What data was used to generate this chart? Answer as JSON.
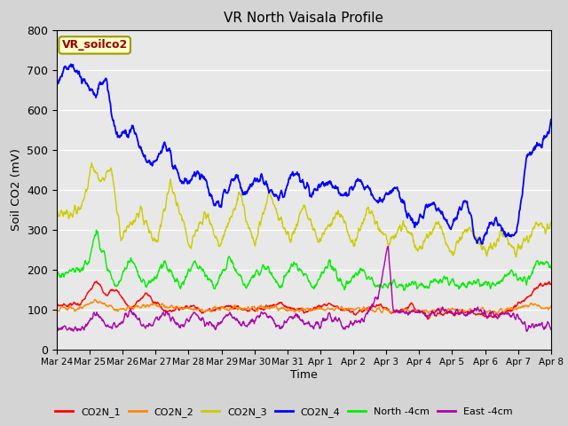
{
  "title": "VR North Vaisala Profile",
  "ylabel": "Soil CO2 (mV)",
  "xlabel": "Time",
  "annotation": "VR_soilco2",
  "ylim": [
    0,
    800
  ],
  "fig_bg_color": "#d4d4d4",
  "plot_bg_color": "#e8e8e8",
  "series_colors": {
    "CO2N_1": "#ff0000",
    "CO2N_2": "#ff8800",
    "CO2N_3": "#cccc00",
    "CO2N_4": "#0000ff",
    "North_4cm": "#00ee00",
    "East_4cm": "#aa00aa"
  },
  "xtick_labels": [
    "Mar 24",
    "Mar 25",
    "Mar 26",
    "Mar 27",
    "Mar 28",
    "Mar 29",
    "Mar 30",
    "Mar 31",
    "Apr 1",
    "Apr 2",
    "Apr 3",
    "Apr 4",
    "Apr 5",
    "Apr 6",
    "Apr 7",
    "Apr 8"
  ],
  "ytick_values": [
    0,
    100,
    200,
    300,
    400,
    500,
    600,
    700,
    800
  ],
  "legend_labels": [
    "CO2N_1",
    "CO2N_2",
    "CO2N_3",
    "CO2N_4",
    "North -4cm",
    "East -4cm"
  ]
}
